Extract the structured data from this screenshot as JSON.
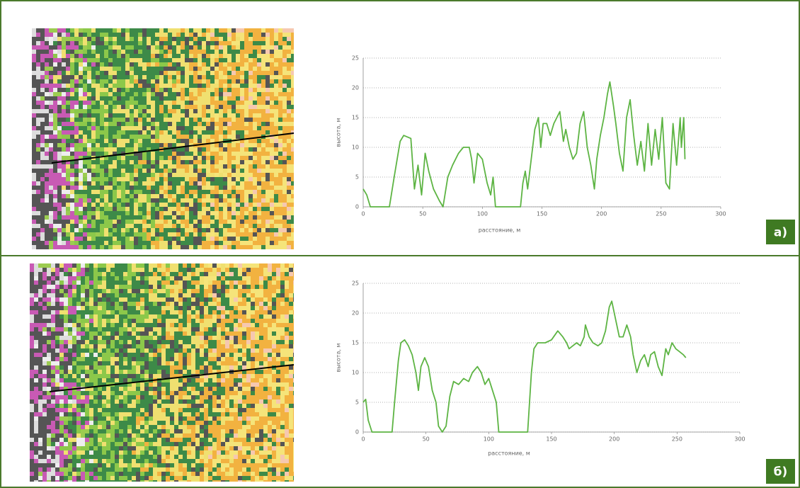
{
  "chart_data": [
    {
      "type": "line",
      "label": "а)",
      "ylabel": "высота, м",
      "xlabel": "расстояние, м",
      "color": "#5db443",
      "xlim": [
        0,
        300
      ],
      "xticks": [
        0,
        50,
        100,
        150,
        200,
        250,
        300
      ],
      "ylim": [
        0,
        25
      ],
      "yticks": [
        0,
        5,
        10,
        15,
        20,
        25
      ],
      "grid": true,
      "x": [
        0,
        3,
        6,
        22,
        26,
        31,
        34,
        40,
        43,
        46,
        49,
        52,
        55,
        59,
        64,
        67,
        71,
        75,
        80,
        84,
        89,
        91,
        93,
        96,
        100,
        104,
        107,
        109,
        111,
        115,
        132,
        134,
        136,
        138,
        141,
        144,
        147,
        149,
        151,
        154,
        157,
        160,
        165,
        168,
        170,
        173,
        176,
        179,
        182,
        185,
        188,
        191,
        194,
        196,
        199,
        202,
        205,
        207,
        210,
        212,
        215,
        218,
        221,
        224,
        227,
        230,
        233,
        236,
        239,
        242,
        245,
        248,
        251,
        254,
        257,
        260,
        263,
        266,
        267,
        269,
        270
      ],
      "values": [
        3,
        2,
        0,
        0,
        5,
        11,
        12,
        11.5,
        3,
        7,
        2,
        9,
        6,
        3,
        1,
        0,
        5,
        7,
        9,
        10,
        10,
        8,
        4,
        9,
        8,
        4,
        2,
        5,
        0,
        0,
        0,
        4,
        6,
        3,
        8,
        13,
        15,
        10,
        14,
        14,
        12,
        14,
        16,
        11,
        13,
        10,
        8,
        9,
        14,
        16,
        10,
        7,
        3,
        8,
        12,
        15,
        19,
        21,
        17,
        14,
        9,
        6,
        15,
        18,
        12,
        7,
        11,
        6,
        14,
        7,
        13,
        8,
        15,
        4,
        3,
        14,
        7,
        15,
        10,
        15,
        8
      ]
    },
    {
      "type": "line",
      "label": "б)",
      "ylabel": "высота, м",
      "xlabel": "расстояние, м",
      "color": "#5db443",
      "xlim": [
        0,
        300
      ],
      "xticks": [
        0,
        50,
        100,
        150,
        200,
        250,
        300
      ],
      "ylim": [
        0,
        25
      ],
      "yticks": [
        0,
        5,
        10,
        15,
        20,
        25
      ],
      "grid": true,
      "x": [
        0,
        2,
        4,
        7,
        23,
        25,
        28,
        30,
        33,
        36,
        39,
        42,
        44,
        46,
        49,
        52,
        55,
        58,
        60,
        63,
        66,
        69,
        72,
        76,
        80,
        84,
        87,
        91,
        94,
        97,
        100,
        103,
        106,
        108,
        111,
        131,
        134,
        136,
        139,
        145,
        150,
        155,
        159,
        162,
        164,
        167,
        170,
        173,
        176,
        177,
        180,
        183,
        187,
        190,
        193,
        196,
        198,
        201,
        204,
        207,
        210,
        213,
        215,
        218,
        221,
        224,
        227,
        229,
        232,
        235,
        238,
        241,
        243,
        246,
        249,
        252,
        255,
        257
      ],
      "values": [
        5,
        5.5,
        2,
        0,
        0,
        5,
        12,
        15,
        15.5,
        14.5,
        13,
        10,
        7,
        11,
        12.5,
        11,
        7,
        5,
        1,
        0,
        1,
        6,
        8.5,
        8,
        9,
        8.5,
        10,
        11,
        10,
        8,
        9,
        7,
        5,
        0,
        0,
        0,
        10,
        14,
        15,
        15,
        15.5,
        17,
        16,
        15,
        14,
        14.5,
        15,
        14.5,
        16,
        18,
        16,
        15,
        14.5,
        15,
        17,
        21,
        22,
        19,
        16,
        16,
        18,
        16,
        13,
        10,
        12,
        13,
        11,
        13,
        13.5,
        11,
        9.5,
        14,
        13,
        15,
        14,
        13.5,
        13,
        12.5
      ]
    }
  ]
}
